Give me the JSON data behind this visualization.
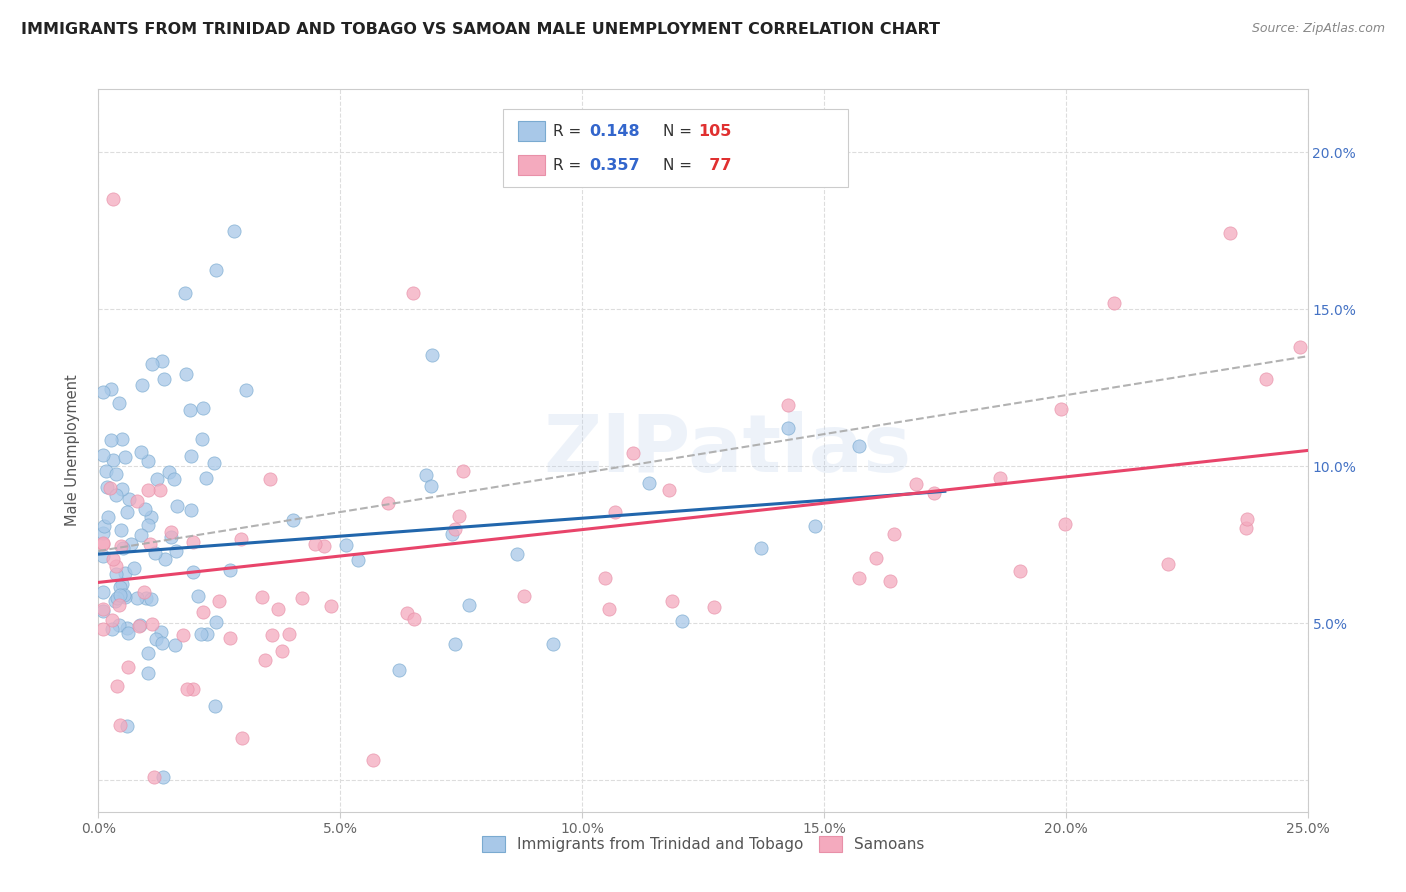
{
  "title": "IMMIGRANTS FROM TRINIDAD AND TOBAGO VS SAMOAN MALE UNEMPLOYMENT CORRELATION CHART",
  "source": "Source: ZipAtlas.com",
  "ylabel": "Male Unemployment",
  "xlim": [
    0,
    0.25
  ],
  "ylim": [
    -0.01,
    0.22
  ],
  "xticks": [
    0.0,
    0.05,
    0.1,
    0.15,
    0.2,
    0.25
  ],
  "yticks": [
    0.0,
    0.05,
    0.1,
    0.15,
    0.2
  ],
  "xticklabels": [
    "0.0%",
    "5.0%",
    "10.0%",
    "15.0%",
    "20.0%",
    "25.0%"
  ],
  "yticklabels_right": [
    "",
    "5.0%",
    "10.0%",
    "15.0%",
    "20.0%"
  ],
  "label1": "Immigrants from Trinidad and Tobago",
  "label2": "Samoans",
  "color1": "#A8C8E8",
  "color2": "#F4AABE",
  "trendline1_color": "#2166ac",
  "trendline2_color": "#E8446A",
  "trendline_dash_color": "#AAAAAA",
  "watermark": "ZIPatlas",
  "background_color": "#FFFFFF",
  "legend_r1_val": "0.148",
  "legend_n1_val": "105",
  "legend_r2_val": "0.357",
  "legend_n2_val": "77",
  "blue_trend": [
    0.0,
    0.175,
    0.072,
    0.092
  ],
  "pink_trend": [
    0.0,
    0.25,
    0.063,
    0.105
  ],
  "dash_trend": [
    0.0,
    0.25,
    0.073,
    0.135
  ]
}
